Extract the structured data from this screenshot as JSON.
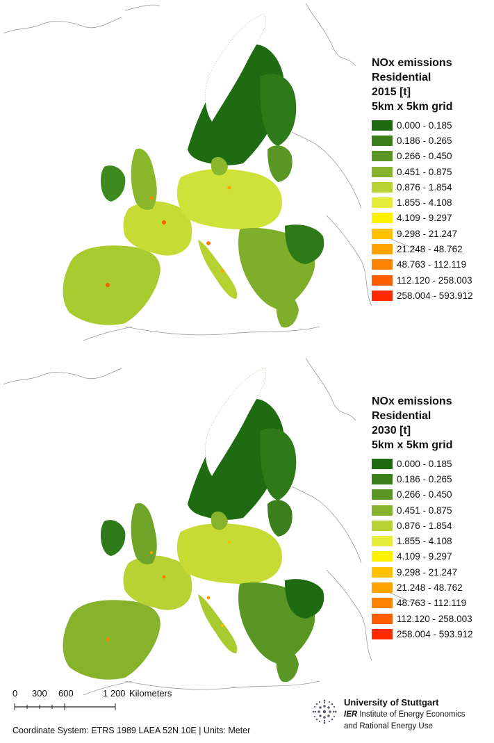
{
  "maps": [
    {
      "title_lines": [
        "NOx emissions",
        "Residential",
        "2015 [t]",
        "5km x 5km grid"
      ]
    },
    {
      "title_lines": [
        "NOx emissions",
        "Residential",
        "2030 [t]",
        "5km x 5km grid"
      ]
    }
  ],
  "legend": [
    {
      "label": "0.000 - 0.185",
      "color": "#1f6b12"
    },
    {
      "label": "0.186 - 0.265",
      "color": "#3a7f1c"
    },
    {
      "label": "0.266 - 0.450",
      "color": "#5a9624"
    },
    {
      "label": "0.451 - 0.875",
      "color": "#86b22c"
    },
    {
      "label": "0.876 - 1.854",
      "color": "#b8d234"
    },
    {
      "label": "1.855 - 4.108",
      "color": "#e6ec3a"
    },
    {
      "label": "4.109 - 9.297",
      "color": "#fff200"
    },
    {
      "label": "9.298 - 21.247",
      "color": "#ffc000"
    },
    {
      "label": "21.248 - 48.762",
      "color": "#ffa200"
    },
    {
      "label": "48.763 - 112.119",
      "color": "#ff8200"
    },
    {
      "label": "112.120 - 258.003",
      "color": "#ff5e00"
    },
    {
      "label": "258.004 - 593.912",
      "color": "#ff2a00"
    }
  ],
  "scalebar": {
    "ticks": [
      "0",
      "300",
      "600",
      "1 200"
    ],
    "unit": "Kilometers"
  },
  "footer": {
    "text": "Coordinate System: ETRS 1989 LAEA 52N 10E |  Units: Meter"
  },
  "university": {
    "name": "University of Stuttgart",
    "ier_abbr": "IER",
    "ier_line1": " Institute of Energy Economics",
    "ier_line2": "and Rational Energy Use"
  }
}
